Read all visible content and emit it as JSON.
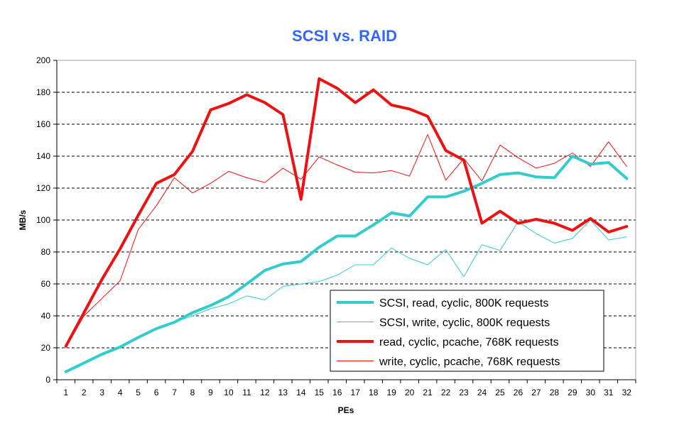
{
  "chart_data": {
    "type": "line",
    "title": "SCSI vs. RAID",
    "xlabel": "PEs",
    "ylabel": "MB/s",
    "ylim": [
      0,
      200
    ],
    "yticks": [
      0,
      20,
      40,
      60,
      80,
      100,
      120,
      140,
      160,
      180,
      200
    ],
    "x": [
      1,
      2,
      3,
      4,
      5,
      6,
      7,
      8,
      9,
      10,
      11,
      12,
      13,
      14,
      15,
      16,
      17,
      18,
      19,
      20,
      21,
      22,
      23,
      24,
      25,
      26,
      27,
      28,
      29,
      30,
      31,
      32
    ],
    "grid": "horizontal dashed",
    "legend_position": "bottom-right",
    "series": [
      {
        "name": "SCSI, read, cyclic, 800K requests",
        "color": "#33cccc",
        "weight": "thick",
        "values": [
          5,
          10.5,
          16,
          20.5,
          26.5,
          32,
          36,
          42,
          46.5,
          52,
          60,
          68.5,
          72.5,
          74,
          83,
          90,
          90,
          97,
          104.5,
          102.5,
          114.5,
          114.5,
          118,
          123,
          128.5,
          129.5,
          127,
          126.5,
          140,
          135,
          136,
          126
        ]
      },
      {
        "name": "SCSI, write, cyclic, 800K requests",
        "color": "#33cccc",
        "weight": "thin",
        "values": [
          5,
          10.5,
          16,
          20.5,
          26.5,
          31.5,
          36,
          40,
          44.5,
          47.5,
          52.5,
          50,
          58.5,
          60,
          61.5,
          65.5,
          72,
          72,
          82.5,
          76,
          72,
          81.5,
          64.5,
          84.5,
          81,
          99,
          91.5,
          85.5,
          88.5,
          100,
          87.5,
          89.5
        ]
      },
      {
        "name": "read, cyclic, pcache, 768K requests",
        "color": "#ee1111",
        "weight": "thick",
        "values": [
          21,
          42,
          63,
          82,
          103,
          123,
          128.5,
          143,
          169,
          173,
          178.5,
          173.5,
          166,
          113,
          188.5,
          182.5,
          173.5,
          181.5,
          172,
          169.5,
          165,
          143.5,
          137.5,
          98,
          105.5,
          98,
          100.5,
          98,
          93.5,
          101,
          92.5,
          96
        ]
      },
      {
        "name": "write, cyclic, pcache, 768K requests",
        "color": "#ee1111",
        "weight": "thin",
        "values": [
          20,
          40,
          51,
          62,
          94,
          109,
          126.5,
          117,
          123,
          130.5,
          126.5,
          123.5,
          132.5,
          125.5,
          139.5,
          134.5,
          130,
          129.5,
          131,
          127.5,
          153.5,
          125,
          138.5,
          124.5,
          147,
          139,
          132.5,
          135.5,
          142,
          133.5,
          149,
          133.5
        ]
      }
    ]
  }
}
